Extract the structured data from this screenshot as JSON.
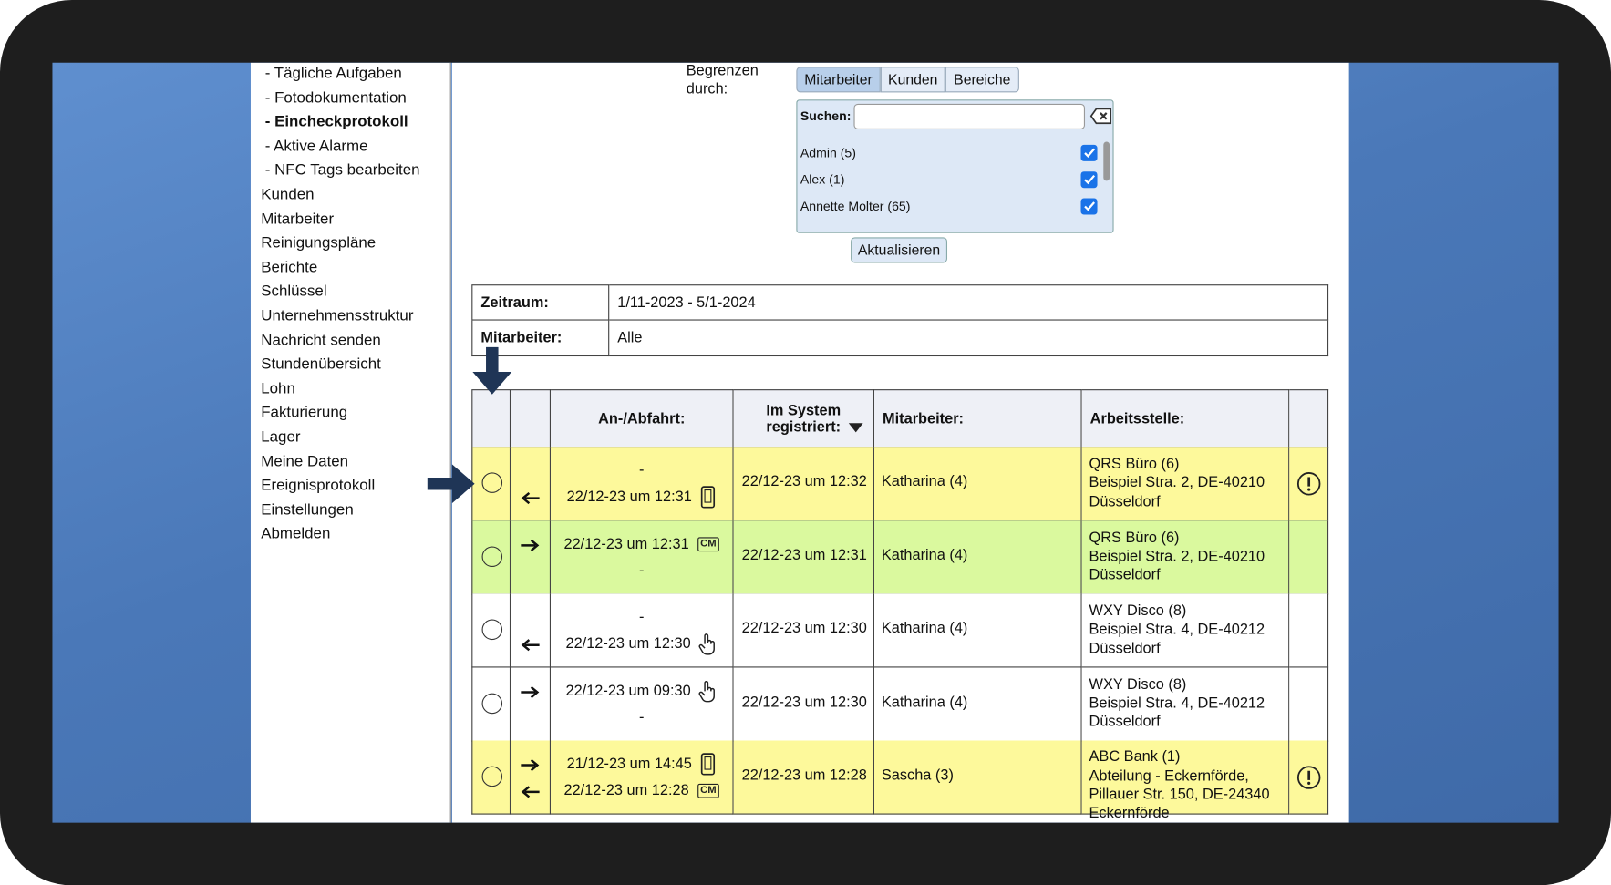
{
  "sidebar": {
    "items": [
      {
        "text": "- Tägliche Aufgaben",
        "sub": true
      },
      {
        "text": "- Fotodokumentation",
        "sub": true
      },
      {
        "text": "- Eincheckprotokoll",
        "sub": true,
        "active": true
      },
      {
        "text": "- Aktive Alarme",
        "sub": true
      },
      {
        "text": "- NFC Tags bearbeiten",
        "sub": true
      },
      {
        "text": "Kunden"
      },
      {
        "text": "Mitarbeiter"
      },
      {
        "text": "Reinigungspläne"
      },
      {
        "text": "Berichte"
      },
      {
        "text": "Schlüssel"
      },
      {
        "text": "Unternehmensstruktur"
      },
      {
        "text": "Nachricht senden"
      },
      {
        "text": "Stundenübersicht"
      },
      {
        "text": "Lohn"
      },
      {
        "text": "Fakturierung"
      },
      {
        "text": "Lager"
      },
      {
        "text": "Meine Daten"
      },
      {
        "text": "Ereignisprotokoll"
      },
      {
        "text": "Einstellungen"
      },
      {
        "text": "Abmelden"
      }
    ]
  },
  "filter": {
    "label": "Begrenzen durch:",
    "tabs": [
      {
        "text": "Mitarbeiter",
        "active": true
      },
      {
        "text": "Kunden"
      },
      {
        "text": "Bereiche"
      }
    ],
    "search_label": "Suchen:",
    "items": [
      {
        "text": "Admin (5)",
        "checked": true
      },
      {
        "text": "Alex (1)",
        "checked": true
      },
      {
        "text": "Annette Molter (65)",
        "checked": true
      }
    ],
    "button": "Aktualisieren"
  },
  "summary": {
    "rows": [
      [
        "Zeitraum:",
        "1/11-2023 - 5/1-2024"
      ],
      [
        "Mitarbeiter:",
        "Alle"
      ]
    ]
  },
  "log": {
    "headers": [
      "An-/Abfahrt:",
      "Im System registriert:",
      "Mitarbeiter:",
      "Arbeitsstelle:"
    ],
    "rows": [
      {
        "status": "yellow",
        "alert": true,
        "lines": [
          {
            "text": "-"
          },
          {
            "text": "22/12-23 um 12:31",
            "arrow": "left",
            "device": "phone"
          }
        ],
        "system": "22/12-23 um 12:32",
        "employee": "Katharina (4)",
        "site": [
          "QRS Büro (6)",
          "Beispiel Stra. 2, DE-40210",
          "Düsseldorf"
        ]
      },
      {
        "status": "green",
        "lines": [
          {
            "text": "22/12-23 um 12:31",
            "arrow": "right",
            "device": "CM"
          },
          {
            "text": "-"
          }
        ],
        "system": "22/12-23 um 12:31",
        "employee": "Katharina (4)",
        "site": [
          "QRS Büro (6)",
          "Beispiel Stra. 2, DE-40210",
          "Düsseldorf"
        ]
      },
      {
        "status": "white",
        "lines": [
          {
            "text": "-"
          },
          {
            "text": "22/12-23 um 12:30",
            "arrow": "left",
            "device": "hand"
          }
        ],
        "system": "22/12-23 um 12:30",
        "employee": "Katharina (4)",
        "site": [
          "WXY Disco (8)",
          "Beispiel Stra. 4, DE-40212",
          "Düsseldorf"
        ]
      },
      {
        "status": "white",
        "lines": [
          {
            "text": "22/12-23 um 09:30",
            "arrow": "right",
            "device": "hand"
          },
          {
            "text": "-"
          }
        ],
        "system": "22/12-23 um 12:30",
        "employee": "Katharina (4)",
        "site": [
          "WXY Disco (8)",
          "Beispiel Stra. 4, DE-40212",
          "Düsseldorf"
        ]
      },
      {
        "status": "yellow",
        "alert": true,
        "lines": [
          {
            "text": "21/12-23 um 14:45",
            "arrow": "right",
            "device": "phone"
          },
          {
            "text": "22/12-23 um 12:28",
            "arrow": "left",
            "device": "CM"
          }
        ],
        "system": "22/12-23 um 12:28",
        "employee": "Sascha (3)",
        "site": [
          "ABC Bank (1)",
          "Abteilung - Eckernförde,",
          "Pillauer Str. 150, DE-24340",
          "Eckernförde"
        ]
      }
    ]
  }
}
